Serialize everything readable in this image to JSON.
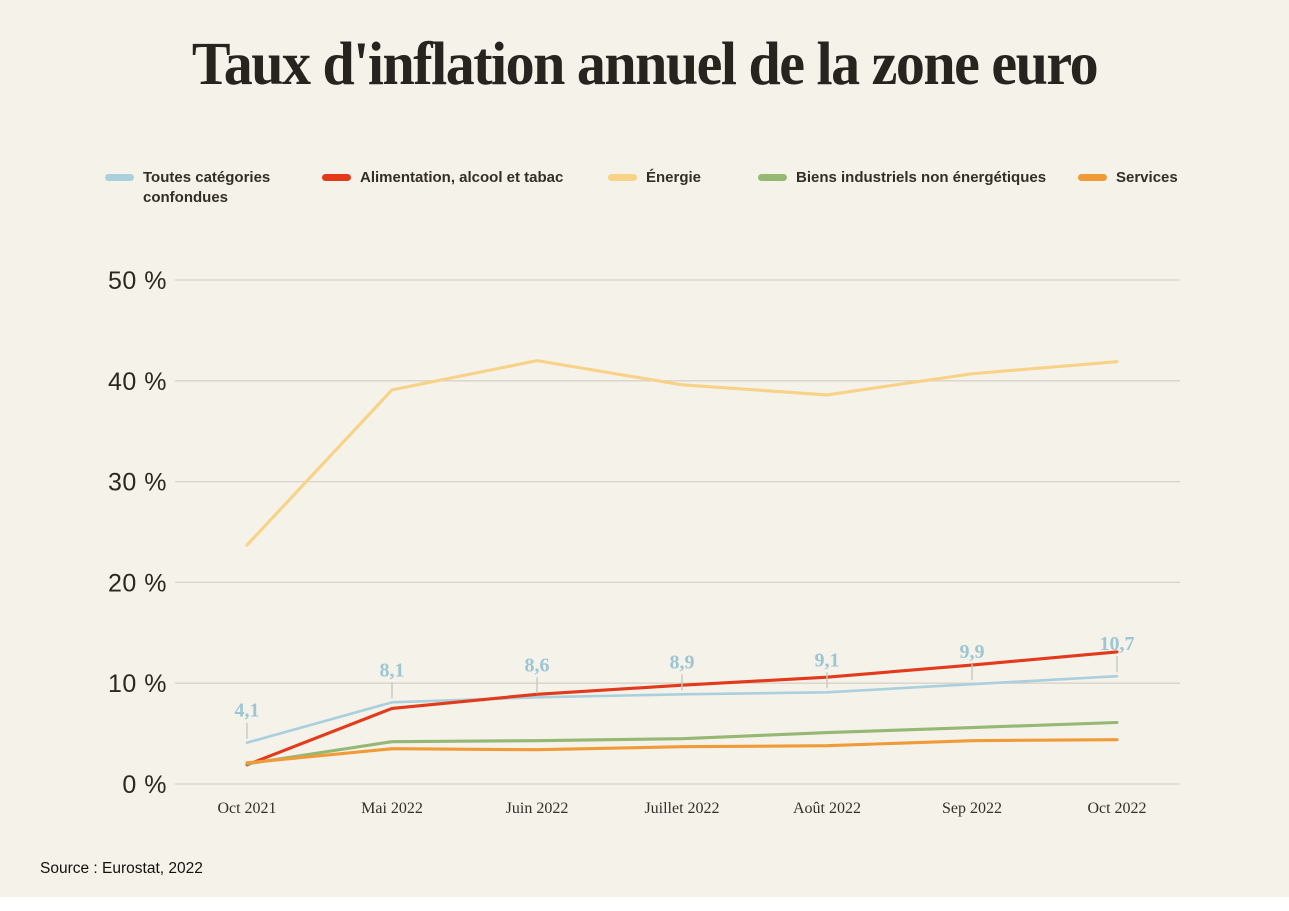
{
  "page": {
    "title": "Taux d'inflation annuel de la zone euro",
    "source": "Source : Eurostat, 2022"
  },
  "colors": {
    "background": "#f5f2ea",
    "grid": "#d6d3ca",
    "label_tick": "#c3c9c6",
    "title_text": "#272420",
    "axis_text": "#2b2821",
    "bottom_bar": "#ffffff"
  },
  "chart_data": {
    "type": "line",
    "title": "Taux d'inflation annuel de la zone euro",
    "categories": [
      "Oct 2021",
      "Mai 2022",
      "Juin 2022",
      "Juillet 2022",
      "Août 2022",
      "Sep 2022",
      "Oct 2022"
    ],
    "yticks": [
      "50 %",
      "40 %",
      "30 %",
      "20 %",
      "10 %",
      "0 %"
    ],
    "ylim": [
      0,
      50
    ],
    "grid": true,
    "legend_position": "top",
    "point_label_format": "comma-decimal",
    "series": [
      {
        "name": "Toutes catégories confondues",
        "color": "#a9d0dc",
        "label_color": "#9cc6d4",
        "point_labels": true,
        "values": [
          4.1,
          8.1,
          8.6,
          8.9,
          9.1,
          9.9,
          10.7
        ]
      },
      {
        "name": "Alimentation, alcool et tabac",
        "color": "#e23a1b",
        "values": [
          1.9,
          7.5,
          8.9,
          9.8,
          10.6,
          11.8,
          13.1
        ]
      },
      {
        "name": "Énergie",
        "color": "#f8d286",
        "values": [
          23.7,
          39.1,
          42.0,
          39.6,
          38.6,
          40.7,
          41.9
        ]
      },
      {
        "name": "Biens industriels non énergétiques",
        "color": "#95b873",
        "values": [
          2.0,
          4.2,
          4.3,
          4.5,
          5.1,
          5.6,
          6.1
        ]
      },
      {
        "name": "Services",
        "color": "#f19a38",
        "values": [
          2.1,
          3.5,
          3.4,
          3.7,
          3.8,
          4.3,
          4.4
        ]
      }
    ]
  }
}
